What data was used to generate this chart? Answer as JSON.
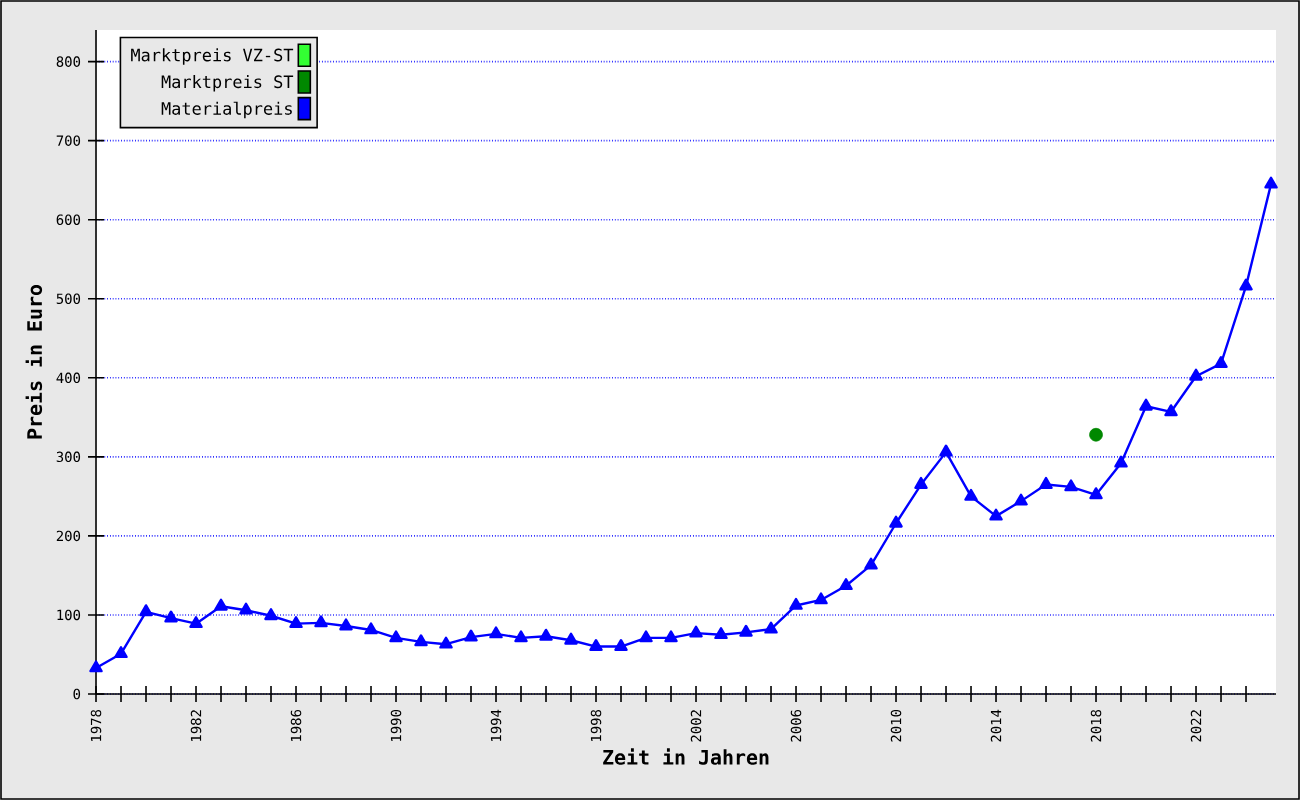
{
  "chart_data": {
    "type": "line",
    "xlabel": "Zeit in Jahren",
    "ylabel": "Preis in Euro",
    "xlim": [
      1978,
      2025.2
    ],
    "ylim": [
      0,
      840
    ],
    "xticks": [
      1978,
      {
        "value": 1979,
        "label": null
      },
      {
        "value": 1980,
        "label": null
      },
      {
        "value": 1981,
        "label": null
      },
      1982,
      {
        "value": 1983,
        "label": null
      },
      {
        "value": 1984,
        "label": null
      },
      {
        "value": 1985,
        "label": null
      },
      1986,
      {
        "value": 1987,
        "label": null
      },
      {
        "value": 1988,
        "label": null
      },
      {
        "value": 1989,
        "label": null
      },
      1990,
      {
        "value": 1991,
        "label": null
      },
      {
        "value": 1992,
        "label": null
      },
      {
        "value": 1993,
        "label": null
      },
      1994,
      {
        "value": 1995,
        "label": null
      },
      {
        "value": 1996,
        "label": null
      },
      {
        "value": 1997,
        "label": null
      },
      1998,
      {
        "value": 1999,
        "label": null
      },
      {
        "value": 2000,
        "label": null
      },
      {
        "value": 2001,
        "label": null
      },
      2002,
      {
        "value": 2003,
        "label": null
      },
      {
        "value": 2004,
        "label": null
      },
      {
        "value": 2005,
        "label": null
      },
      2006,
      {
        "value": 2007,
        "label": null
      },
      {
        "value": 2008,
        "label": null
      },
      {
        "value": 2009,
        "label": null
      },
      2010,
      {
        "value": 2011,
        "label": null
      },
      {
        "value": 2012,
        "label": null
      },
      {
        "value": 2013,
        "label": null
      },
      2014,
      {
        "value": 2015,
        "label": null
      },
      {
        "value": 2016,
        "label": null
      },
      {
        "value": 2017,
        "label": null
      },
      2018,
      {
        "value": 2019,
        "label": null
      },
      {
        "value": 2020,
        "label": null
      },
      {
        "value": 2021,
        "label": null
      },
      2022,
      {
        "value": 2023,
        "label": null
      },
      {
        "value": 2024,
        "label": null
      }
    ],
    "yticks": [
      0,
      100,
      200,
      300,
      400,
      500,
      600,
      700,
      800
    ],
    "grid": "y",
    "legend": "top left",
    "series": [
      {
        "name": "Marktpreis VZ-ST",
        "color": "#33ff33",
        "type": "scatter",
        "marker": "circle"
      },
      {
        "name": "Marktpreis ST",
        "color": "#008800",
        "type": "scatter",
        "marker": "circle",
        "x": [
          2018
        ],
        "values": [
          328
        ]
      },
      {
        "name": "Materialpreis",
        "color": "#0000ff",
        "marker": "triangle",
        "x": [
          1978,
          1979,
          1980,
          1981,
          1982,
          1983,
          1984,
          1985,
          1986,
          1987,
          1988,
          1989,
          1990,
          1991,
          1992,
          1993,
          1994,
          1995,
          1996,
          1997,
          1998,
          1999,
          2000,
          2001,
          2002,
          2003,
          2004,
          2005,
          2006,
          2007,
          2008,
          2009,
          2010,
          2011,
          2012,
          2013,
          2014,
          2015,
          2016,
          2017,
          2018,
          2019,
          2020,
          2021,
          2022,
          2023,
          2024,
          2025
        ],
        "values": [
          33,
          51,
          104,
          96,
          89,
          111,
          106,
          99,
          89,
          90,
          86,
          81,
          71,
          66,
          63,
          72,
          76,
          71,
          73,
          68,
          60,
          60,
          71,
          71,
          77,
          75,
          78,
          82,
          112,
          119,
          137,
          163,
          216,
          265,
          306,
          250,
          225,
          244,
          265,
          262,
          252,
          292,
          364,
          357,
          402,
          418,
          516,
          645
        ]
      }
    ]
  }
}
